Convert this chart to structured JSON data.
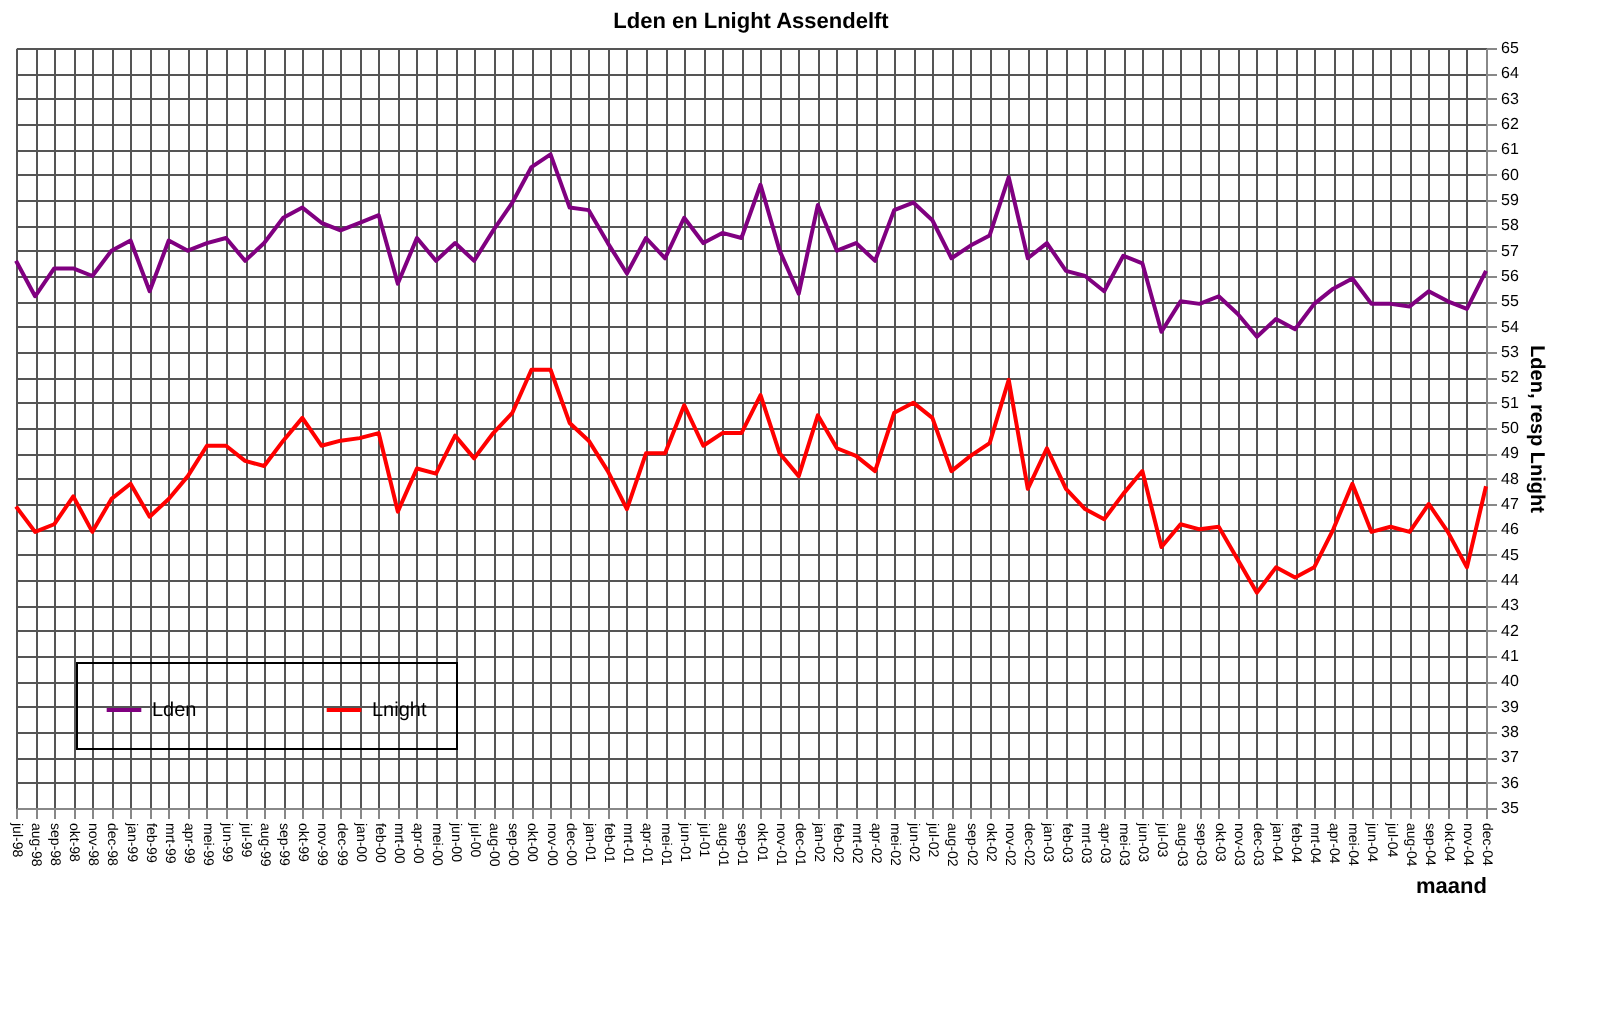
{
  "chart_data": {
    "type": "line",
    "title": "Lden en Lnight  Assendelft",
    "xlabel": "maand",
    "ylabel": "Lden, resp Lnight",
    "categories": [
      "jul-98",
      "aug-98",
      "sep-98",
      "okt-98",
      "nov-98",
      "dec-98",
      "jan-99",
      "feb-99",
      "mrt-99",
      "apr-99",
      "mei-99",
      "jun-99",
      "jul-99",
      "aug-99",
      "sep-99",
      "okt-99",
      "nov-99",
      "dec-99",
      "jan-00",
      "feb-00",
      "mrt-00",
      "apr-00",
      "mei-00",
      "jun-00",
      "jul-00",
      "aug-00",
      "sep-00",
      "okt-00",
      "nov-00",
      "dec-00",
      "jan-01",
      "feb-01",
      "mrt-01",
      "apr-01",
      "mei-01",
      "jun-01",
      "jul-01",
      "aug-01",
      "sep-01",
      "okt-01",
      "nov-01",
      "dec-01",
      "jan-02",
      "feb-02",
      "mrt-02",
      "apr-02",
      "mei-02",
      "jun-02",
      "jul-02",
      "aug-02",
      "sep-02",
      "okt-02",
      "nov-02",
      "dec-02",
      "jan-03",
      "feb-03",
      "mrt-03",
      "apr-03",
      "mei-03",
      "jun-03",
      "jul-03",
      "aug-03",
      "sep-03",
      "okt-03",
      "nov-03",
      "dec-03",
      "jan-04",
      "feb-04",
      "mrt-04",
      "apr-04",
      "mei-04",
      "jun-04",
      "jul-04",
      "aug-04",
      "sep-04",
      "okt-04",
      "nov-04",
      "dec-04"
    ],
    "series": [
      {
        "name": "Lden",
        "color": "#800080",
        "values": [
          56.6,
          55.2,
          56.3,
          56.3,
          56.0,
          57.0,
          57.4,
          55.4,
          57.4,
          57.0,
          57.3,
          57.5,
          56.6,
          57.3,
          58.3,
          58.7,
          58.1,
          57.8,
          58.1,
          58.4,
          55.7,
          57.5,
          56.6,
          57.3,
          56.6,
          57.8,
          58.9,
          60.3,
          60.8,
          58.7,
          58.6,
          57.3,
          56.1,
          57.5,
          56.7,
          58.3,
          57.3,
          57.7,
          57.5,
          59.6,
          57.0,
          55.3,
          58.8,
          57.0,
          57.3,
          56.6,
          58.6,
          58.9,
          58.2,
          56.7,
          57.2,
          57.6,
          59.9,
          56.7,
          57.3,
          56.2,
          56.0,
          55.4,
          56.8,
          56.5,
          53.8,
          55.0,
          54.9,
          55.2,
          54.5,
          53.6,
          54.3,
          53.9,
          54.9,
          55.5,
          55.9,
          54.9,
          54.9,
          54.8,
          55.4,
          55.0,
          54.7,
          56.2
        ]
      },
      {
        "name": "Lnight",
        "color": "#ff0000",
        "values": [
          46.9,
          45.9,
          46.2,
          47.3,
          45.9,
          47.2,
          47.8,
          46.5,
          47.2,
          48.1,
          49.3,
          49.3,
          48.7,
          48.5,
          49.5,
          50.4,
          49.3,
          49.5,
          49.6,
          49.8,
          46.7,
          48.4,
          48.2,
          49.7,
          48.8,
          49.8,
          50.6,
          52.3,
          52.3,
          50.2,
          49.5,
          48.3,
          46.8,
          49.0,
          49.0,
          50.9,
          49.3,
          49.8,
          49.8,
          51.3,
          49.0,
          48.1,
          50.5,
          49.2,
          48.9,
          48.3,
          50.6,
          51.0,
          50.4,
          48.3,
          48.9,
          49.4,
          51.9,
          47.6,
          49.2,
          47.6,
          46.8,
          46.4,
          47.4,
          48.3,
          45.3,
          46.2,
          46.0,
          46.1,
          44.8,
          43.5,
          44.5,
          44.1,
          44.5,
          46.0,
          47.8,
          45.9,
          46.1,
          45.9,
          47.0,
          45.9,
          44.5,
          47.7
        ]
      }
    ],
    "ylim": [
      35,
      65
    ],
    "yticks": [
      35,
      36,
      37,
      38,
      39,
      40,
      41,
      42,
      43,
      44,
      45,
      46,
      47,
      48,
      49,
      50,
      51,
      52,
      53,
      54,
      55,
      56,
      57,
      58,
      59,
      60,
      61,
      62,
      63,
      64,
      65
    ],
    "grid": true,
    "legend": "bottom left"
  }
}
